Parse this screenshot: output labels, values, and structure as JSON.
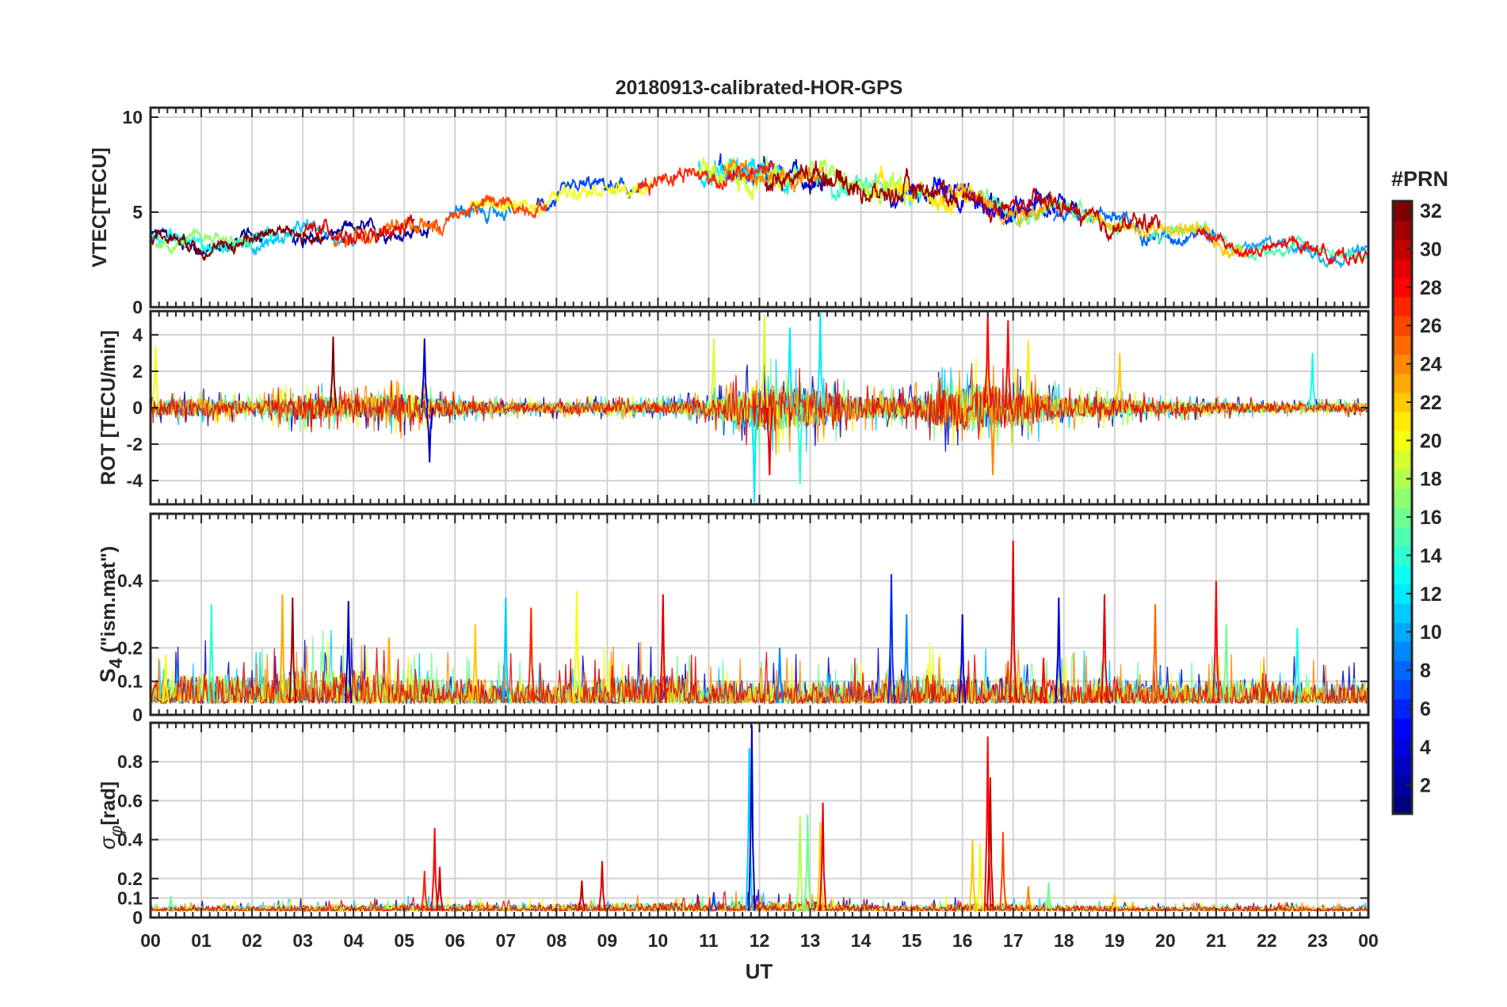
{
  "chart_data": {
    "type": "line",
    "title": "20180913-calibrated-HOR-GPS",
    "xlabel": "UT",
    "x_ticks": [
      "00",
      "01",
      "02",
      "03",
      "04",
      "05",
      "06",
      "07",
      "08",
      "09",
      "10",
      "11",
      "12",
      "13",
      "14",
      "15",
      "16",
      "17",
      "18",
      "19",
      "20",
      "21",
      "22",
      "23",
      "00"
    ],
    "xlim_hours": [
      0,
      24
    ],
    "panels": [
      {
        "id": "vtec",
        "ylabel": "VTEC[TECU]",
        "ylim": [
          0,
          10.5
        ],
        "yticks": [
          0,
          5,
          10
        ],
        "ytick_labels": [
          "0",
          "5",
          "10"
        ],
        "trend_hours": [
          0,
          1,
          2,
          3,
          4,
          5,
          6,
          7,
          8,
          9,
          10,
          11,
          12,
          13,
          14,
          15,
          16,
          17,
          18,
          19,
          20,
          21,
          22,
          23,
          24
        ],
        "trend_values": [
          3.5,
          3.3,
          3.6,
          3.8,
          3.7,
          4.2,
          4.7,
          5.4,
          5.8,
          6.2,
          6.6,
          7.0,
          7.2,
          6.8,
          6.4,
          6.0,
          5.7,
          5.4,
          5.0,
          4.5,
          4.0,
          3.5,
          3.1,
          2.9,
          3.0
        ],
        "segments": [
          {
            "prn": 1,
            "start": 0.0,
            "end": 2.3,
            "noise": 0.35
          },
          {
            "prn": 2,
            "start": 2.8,
            "end": 5.5,
            "noise": 0.35
          },
          {
            "prn": 3,
            "start": 12.6,
            "end": 13.3,
            "noise": 0.7
          },
          {
            "prn": 4,
            "start": 15.6,
            "end": 18.3,
            "noise": 0.5
          },
          {
            "prn": 5,
            "start": 14.5,
            "end": 17.8,
            "noise": 0.6
          },
          {
            "prn": 6,
            "start": 11.2,
            "end": 12.5,
            "noise": 0.8
          },
          {
            "prn": 7,
            "start": 7.6,
            "end": 9.7,
            "noise": 0.4
          },
          {
            "prn": 8,
            "start": 17.8,
            "end": 21.0,
            "noise": 0.4
          },
          {
            "prn": 9,
            "start": 5.9,
            "end": 7.1,
            "noise": 0.35
          },
          {
            "prn": 10,
            "start": 21.5,
            "end": 24.0,
            "noise": 0.3
          },
          {
            "prn": 11,
            "start": 1.8,
            "end": 4.0,
            "noise": 0.35
          },
          {
            "prn": 12,
            "start": 10.8,
            "end": 12.6,
            "noise": 0.8
          },
          {
            "prn": 13,
            "start": 0.0,
            "end": 2.5,
            "noise": 0.35
          },
          {
            "prn": 14,
            "start": 12.7,
            "end": 15.4,
            "noise": 0.5
          },
          {
            "prn": 15,
            "start": 19.7,
            "end": 24.0,
            "noise": 0.3
          },
          {
            "prn": 16,
            "start": 16.3,
            "end": 19.2,
            "noise": 0.45
          },
          {
            "prn": 17,
            "start": 0.1,
            "end": 2.0,
            "noise": 0.35
          },
          {
            "prn": 18,
            "start": 12.2,
            "end": 14.9,
            "noise": 0.7
          },
          {
            "prn": 19,
            "start": 10.8,
            "end": 12.5,
            "noise": 0.8
          },
          {
            "prn": 20,
            "start": 6.3,
            "end": 9.9,
            "noise": 0.4
          },
          {
            "prn": 21,
            "start": 14.2,
            "end": 16.2,
            "noise": 0.6
          },
          {
            "prn": 22,
            "start": 18.3,
            "end": 21.6,
            "noise": 0.4
          },
          {
            "prn": 23,
            "start": 15.6,
            "end": 17.8,
            "noise": 0.5
          },
          {
            "prn": 24,
            "start": 11.3,
            "end": 13.3,
            "noise": 0.5
          },
          {
            "prn": 25,
            "start": 3.6,
            "end": 5.7,
            "noise": 0.45
          },
          {
            "prn": 26,
            "start": 5.55,
            "end": 7.8,
            "noise": 0.4
          },
          {
            "prn": 27,
            "start": 9.6,
            "end": 12.3,
            "noise": 0.5
          },
          {
            "prn": 28,
            "start": 20.6,
            "end": 24.0,
            "noise": 0.35
          },
          {
            "prn": 29,
            "start": 3.0,
            "end": 5.2,
            "noise": 0.45
          },
          {
            "prn": 30,
            "start": 16.0,
            "end": 19.9,
            "noise": 0.5
          },
          {
            "prn": 31,
            "start": 12.1,
            "end": 15.9,
            "noise": 0.6
          },
          {
            "prn": 32,
            "start": 0.0,
            "end": 3.4,
            "noise": 0.35
          }
        ]
      },
      {
        "id": "rot",
        "ylabel": "ROT [TECU/min]",
        "ylim": [
          -5.3,
          5.3
        ],
        "yticks": [
          -4,
          -2,
          0,
          2,
          4
        ],
        "ytick_labels": [
          "-4",
          "-2",
          "0",
          "2",
          "4"
        ],
        "activity_hours": [
          0,
          1,
          2,
          3,
          4,
          5,
          6,
          7,
          8,
          9,
          10,
          11,
          12,
          13,
          14,
          15,
          16,
          17,
          18,
          19,
          20,
          21,
          22,
          23,
          24
        ],
        "activity_amplitude": [
          0.4,
          0.5,
          0.35,
          0.7,
          0.5,
          0.8,
          0.4,
          0.3,
          0.3,
          0.3,
          0.3,
          0.45,
          1.3,
          1.1,
          0.6,
          0.6,
          1.4,
          1.1,
          0.6,
          0.5,
          0.35,
          0.3,
          0.25,
          0.25,
          0.25
        ],
        "spikes": [
          {
            "t": 0.1,
            "v": 3.4,
            "prn": 20
          },
          {
            "t": 3.6,
            "v": 3.9,
            "prn": 32
          },
          {
            "t": 5.4,
            "v": 3.8,
            "prn": 3
          },
          {
            "t": 5.5,
            "v": -3.0,
            "prn": 3
          },
          {
            "t": 11.1,
            "v": 3.8,
            "prn": 19
          },
          {
            "t": 11.9,
            "v": -5.2,
            "prn": 12
          },
          {
            "t": 12.1,
            "v": 5.1,
            "prn": 19
          },
          {
            "t": 12.2,
            "v": -3.7,
            "prn": 29
          },
          {
            "t": 12.6,
            "v": 4.4,
            "prn": 12
          },
          {
            "t": 12.8,
            "v": -4.2,
            "prn": 14
          },
          {
            "t": 13.2,
            "v": 5.2,
            "prn": 12
          },
          {
            "t": 16.5,
            "v": 5.2,
            "prn": 28
          },
          {
            "t": 16.6,
            "v": -3.7,
            "prn": 24
          },
          {
            "t": 16.9,
            "v": 4.8,
            "prn": 28
          },
          {
            "t": 17.3,
            "v": 3.7,
            "prn": 21
          },
          {
            "t": 19.1,
            "v": 3.0,
            "prn": 22
          },
          {
            "t": 22.9,
            "v": 3.0,
            "prn": 13
          }
        ]
      },
      {
        "id": "s4",
        "ylabel_main": "S",
        "ylabel_sub": "4",
        "ylabel_tail": " (\"ism.mat\")",
        "ylim": [
          0,
          0.6
        ],
        "yticks": [
          0,
          0.1,
          0.2,
          0.4
        ],
        "ytick_labels": [
          "0",
          "0.1",
          "0.2",
          "0.4"
        ],
        "baseline": 0.035,
        "activity_hours": [
          0,
          1,
          2,
          3,
          4,
          5,
          6,
          7,
          8,
          9,
          10,
          11,
          12,
          13,
          14,
          15,
          16,
          17,
          18,
          19,
          20,
          21,
          22,
          23,
          24
        ],
        "activity_amplitude": [
          0.07,
          0.09,
          0.08,
          0.1,
          0.1,
          0.08,
          0.07,
          0.07,
          0.06,
          0.08,
          0.09,
          0.07,
          0.07,
          0.07,
          0.07,
          0.09,
          0.08,
          0.08,
          0.07,
          0.08,
          0.06,
          0.07,
          0.07,
          0.06,
          0.06
        ],
        "spikes": [
          {
            "t": 0.3,
            "v": 0.18,
            "prn": 20
          },
          {
            "t": 1.2,
            "v": 0.33,
            "prn": 14
          },
          {
            "t": 2.6,
            "v": 0.36,
            "prn": 23
          },
          {
            "t": 2.8,
            "v": 0.35,
            "prn": 31
          },
          {
            "t": 3.9,
            "v": 0.34,
            "prn": 3
          },
          {
            "t": 4.7,
            "v": 0.23,
            "prn": 23
          },
          {
            "t": 6.4,
            "v": 0.27,
            "prn": 22
          },
          {
            "t": 7.0,
            "v": 0.35,
            "prn": 11
          },
          {
            "t": 7.5,
            "v": 0.32,
            "prn": 27
          },
          {
            "t": 8.4,
            "v": 0.37,
            "prn": 20
          },
          {
            "t": 10.1,
            "v": 0.36,
            "prn": 29
          },
          {
            "t": 12.4,
            "v": 0.2,
            "prn": 9
          },
          {
            "t": 14.6,
            "v": 0.42,
            "prn": 6
          },
          {
            "t": 14.9,
            "v": 0.3,
            "prn": 9
          },
          {
            "t": 16.0,
            "v": 0.3,
            "prn": 4
          },
          {
            "t": 17.0,
            "v": 0.52,
            "prn": 29
          },
          {
            "t": 17.6,
            "v": 0.17,
            "prn": 28
          },
          {
            "t": 17.9,
            "v": 0.35,
            "prn": 4
          },
          {
            "t": 18.8,
            "v": 0.36,
            "prn": 29
          },
          {
            "t": 19.8,
            "v": 0.33,
            "prn": 25
          },
          {
            "t": 21.0,
            "v": 0.4,
            "prn": 28
          },
          {
            "t": 21.2,
            "v": 0.27,
            "prn": 16
          },
          {
            "t": 22.6,
            "v": 0.26,
            "prn": 13
          }
        ]
      },
      {
        "id": "sigma_phi",
        "ylabel_main": "σ",
        "ylabel_sub": "φ",
        "ylabel_tail": "[rad]",
        "ylim": [
          0,
          1.0
        ],
        "yticks": [
          0,
          0.1,
          0.2,
          0.4,
          0.6,
          0.8
        ],
        "ytick_labels": [
          "0",
          "0.1",
          "0.2",
          "0.4",
          "0.6",
          "0.8"
        ],
        "baseline": 0.035,
        "activity_hours": [
          0,
          1,
          2,
          3,
          4,
          5,
          6,
          7,
          8,
          9,
          10,
          11,
          12,
          13,
          14,
          15,
          16,
          17,
          18,
          19,
          20,
          21,
          22,
          23,
          24
        ],
        "activity_amplitude": [
          0.02,
          0.025,
          0.025,
          0.03,
          0.03,
          0.04,
          0.035,
          0.03,
          0.035,
          0.04,
          0.04,
          0.045,
          0.05,
          0.05,
          0.03,
          0.025,
          0.04,
          0.035,
          0.025,
          0.025,
          0.02,
          0.02,
          0.025,
          0.02,
          0.02
        ],
        "spikes": [
          {
            "t": 0.4,
            "v": 0.11,
            "prn": 16
          },
          {
            "t": 5.4,
            "v": 0.24,
            "prn": 27
          },
          {
            "t": 5.6,
            "v": 0.46,
            "prn": 28
          },
          {
            "t": 5.7,
            "v": 0.26,
            "prn": 30
          },
          {
            "t": 8.5,
            "v": 0.19,
            "prn": 30
          },
          {
            "t": 8.9,
            "v": 0.29,
            "prn": 29
          },
          {
            "t": 11.1,
            "v": 0.13,
            "prn": 7
          },
          {
            "t": 11.8,
            "v": 0.87,
            "prn": 11
          },
          {
            "t": 11.85,
            "v": 0.99,
            "prn": 3
          },
          {
            "t": 12.8,
            "v": 0.52,
            "prn": 18
          },
          {
            "t": 12.95,
            "v": 0.53,
            "prn": 16
          },
          {
            "t": 13.2,
            "v": 0.49,
            "prn": 22
          },
          {
            "t": 13.25,
            "v": 0.59,
            "prn": 29
          },
          {
            "t": 16.2,
            "v": 0.4,
            "prn": 22
          },
          {
            "t": 16.35,
            "v": 0.38,
            "prn": 20
          },
          {
            "t": 16.5,
            "v": 0.93,
            "prn": 28
          },
          {
            "t": 16.55,
            "v": 0.72,
            "prn": 30
          },
          {
            "t": 16.8,
            "v": 0.44,
            "prn": 26
          },
          {
            "t": 17.3,
            "v": 0.16,
            "prn": 24
          },
          {
            "t": 17.7,
            "v": 0.18,
            "prn": 16
          },
          {
            "t": 19.0,
            "v": 0.12,
            "prn": 22
          }
        ]
      }
    ],
    "colorbar": {
      "label": "#PRN",
      "min": 1,
      "max": 32,
      "ticks": [
        2,
        4,
        6,
        8,
        10,
        12,
        14,
        16,
        18,
        20,
        22,
        24,
        26,
        28,
        30,
        32
      ],
      "tick_labels": [
        "2",
        "4",
        "6",
        "8",
        "10",
        "12",
        "14",
        "16",
        "18",
        "20",
        "22",
        "24",
        "26",
        "28",
        "30",
        "32"
      ],
      "colormap": "jet"
    }
  }
}
